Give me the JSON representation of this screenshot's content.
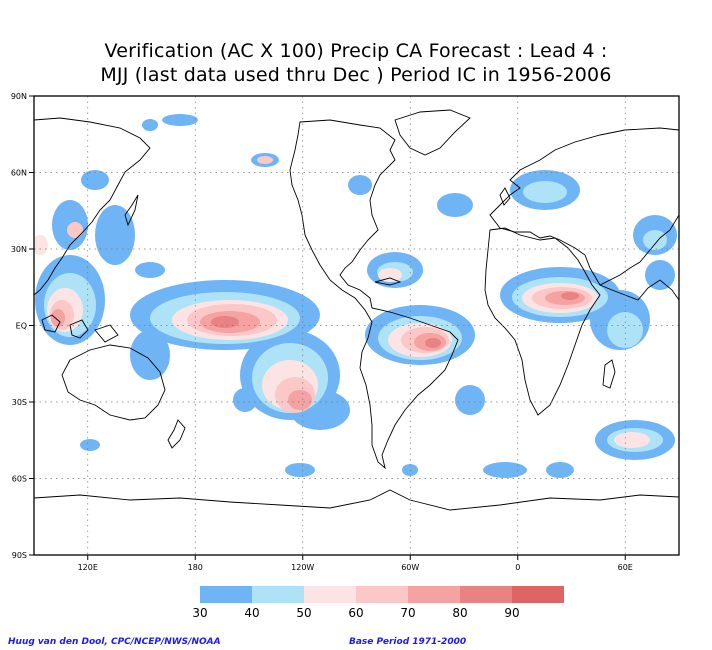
{
  "title": {
    "line1": "Verification (AC X 100) Precip CA Forecast : Lead 4 :",
    "line2": "MJJ (last data used thru Dec ) Period IC in 1956-2006"
  },
  "map": {
    "projection": "cylindrical-equidistant",
    "lon_range": [
      90,
      450
    ],
    "lat_range": [
      -90,
      90
    ],
    "lat_labels": [
      "90N",
      "60N",
      "30N",
      "EQ",
      "30S",
      "60S",
      "90S"
    ],
    "lon_labels": [
      "120E",
      "180",
      "120W",
      "60W",
      "0",
      "60E"
    ],
    "gridlines": "dotted"
  },
  "colorbar": {
    "labels": [
      "30",
      "40",
      "50",
      "60",
      "70",
      "80",
      "90"
    ],
    "colors": [
      "#6fb4f5",
      "#aee3f7",
      "#fde4e4",
      "#fbc7c7",
      "#f4a2a2",
      "#e98282",
      "#df6464"
    ]
  },
  "footer": {
    "left": "Huug van den Dool, CPC/NCEP/NWS/NOAA",
    "right": "Base Period 1971-2000"
  }
}
